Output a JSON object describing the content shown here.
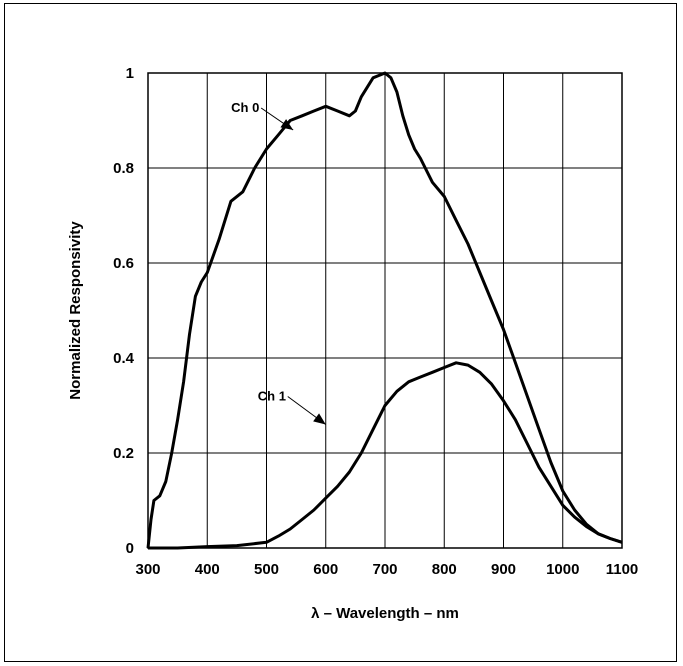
{
  "chart_data": {
    "type": "line",
    "title": "",
    "xlabel": "λ – Wavelength – nm",
    "ylabel": "Normalized Responsivity",
    "xlim": [
      300,
      1100
    ],
    "ylim": [
      0,
      1
    ],
    "x_ticks": [
      300,
      400,
      500,
      600,
      700,
      800,
      900,
      1000,
      1100
    ],
    "y_ticks": [
      0,
      0.2,
      0.4,
      0.6,
      0.8,
      1
    ],
    "x_tick_labels": [
      "300",
      "400",
      "500",
      "600",
      "700",
      "800",
      "900",
      "1000",
      "1100"
    ],
    "y_tick_labels": [
      "0",
      "0.2",
      "0.4",
      "0.6",
      "0.8",
      "1"
    ],
    "grid": true,
    "legend": "none",
    "series": [
      {
        "name": "Ch 0",
        "color": "#000000",
        "x": [
          300,
          305,
          310,
          320,
          330,
          340,
          350,
          360,
          370,
          380,
          390,
          400,
          420,
          440,
          460,
          480,
          500,
          520,
          540,
          560,
          580,
          600,
          620,
          640,
          650,
          660,
          670,
          680,
          690,
          700,
          710,
          720,
          730,
          740,
          750,
          760,
          780,
          800,
          820,
          840,
          860,
          880,
          900,
          920,
          940,
          960,
          980,
          1000,
          1020,
          1040,
          1060,
          1080,
          1100
        ],
        "y": [
          0.0,
          0.06,
          0.1,
          0.11,
          0.14,
          0.2,
          0.27,
          0.35,
          0.45,
          0.53,
          0.56,
          0.58,
          0.65,
          0.73,
          0.75,
          0.8,
          0.84,
          0.87,
          0.9,
          0.91,
          0.92,
          0.93,
          0.92,
          0.91,
          0.92,
          0.95,
          0.97,
          0.99,
          0.995,
          1.0,
          0.99,
          0.96,
          0.91,
          0.87,
          0.84,
          0.82,
          0.77,
          0.74,
          0.69,
          0.64,
          0.58,
          0.52,
          0.46,
          0.39,
          0.32,
          0.25,
          0.18,
          0.12,
          0.08,
          0.05,
          0.03,
          0.02,
          0.012
        ]
      },
      {
        "name": "Ch 1",
        "color": "#000000",
        "x": [
          300,
          350,
          400,
          450,
          500,
          520,
          540,
          560,
          580,
          600,
          620,
          640,
          660,
          680,
          700,
          720,
          740,
          760,
          780,
          800,
          820,
          840,
          860,
          880,
          900,
          920,
          940,
          960,
          980,
          1000,
          1020,
          1040,
          1060,
          1080,
          1100
        ],
        "y": [
          0.0,
          0.0,
          0.003,
          0.005,
          0.012,
          0.025,
          0.04,
          0.06,
          0.08,
          0.105,
          0.13,
          0.16,
          0.2,
          0.25,
          0.3,
          0.33,
          0.35,
          0.36,
          0.37,
          0.38,
          0.39,
          0.385,
          0.37,
          0.345,
          0.31,
          0.27,
          0.22,
          0.17,
          0.13,
          0.09,
          0.065,
          0.045,
          0.03,
          0.02,
          0.012
        ]
      }
    ],
    "annotations": [
      {
        "text": "Ch 0",
        "arrow_to": [
          545,
          0.88
        ]
      },
      {
        "text": "Ch 1",
        "arrow_to": [
          600,
          0.26
        ]
      }
    ]
  }
}
